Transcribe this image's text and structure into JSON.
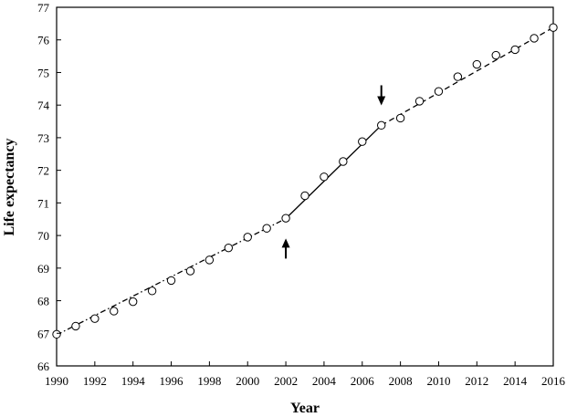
{
  "chart_data": {
    "type": "scatter",
    "title": "",
    "xlabel": "Year",
    "ylabel": "Life expectancy",
    "xlim": [
      1990,
      2016
    ],
    "ylim": [
      66,
      77
    ],
    "xticks": [
      1990,
      1992,
      1994,
      1996,
      1998,
      2000,
      2002,
      2004,
      2006,
      2008,
      2010,
      2012,
      2014,
      2016
    ],
    "yticks": [
      66,
      67,
      68,
      69,
      70,
      71,
      72,
      73,
      74,
      75,
      76,
      77
    ],
    "grid": false,
    "legend": "none",
    "series": [
      {
        "marker": "open-circle",
        "x": [
          1990,
          1991,
          1992,
          1993,
          1994,
          1995,
          1996,
          1997,
          1998,
          1999,
          2000,
          2001,
          2002,
          2003,
          2004,
          2005,
          2006,
          2007,
          2008,
          2009,
          2010,
          2011,
          2012,
          2013,
          2014,
          2015,
          2016
        ],
        "y": [
          66.97,
          67.22,
          67.45,
          67.68,
          67.97,
          68.3,
          68.62,
          68.91,
          69.25,
          69.62,
          69.95,
          70.22,
          70.53,
          71.22,
          71.8,
          72.27,
          72.88,
          73.38,
          73.6,
          74.12,
          74.42,
          74.87,
          75.25,
          75.53,
          75.7,
          76.05,
          76.38
        ]
      }
    ],
    "fit_lines": [
      {
        "style": "dash-dot",
        "from": [
          1990,
          66.95
        ],
        "to": [
          2002,
          70.52
        ]
      },
      {
        "style": "solid",
        "from": [
          2002,
          70.52
        ],
        "to": [
          2007,
          73.38
        ]
      },
      {
        "style": "dashed",
        "from": [
          2007,
          73.38
        ],
        "to": [
          2016,
          76.38
        ]
      }
    ],
    "annotations": [
      {
        "type": "arrow-up",
        "x": 2002,
        "y": 69.6
      },
      {
        "type": "arrow-down",
        "x": 2007,
        "y": 74.3
      }
    ]
  }
}
